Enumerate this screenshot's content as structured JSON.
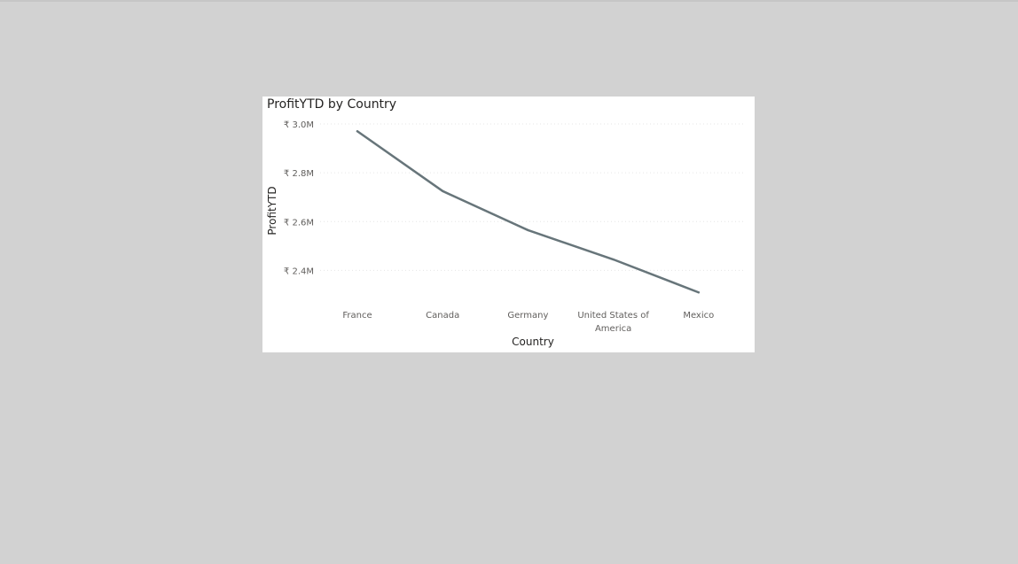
{
  "chart_data": {
    "type": "line",
    "title": "ProfitYTD by Country",
    "xlabel": "Country",
    "ylabel": "ProfitYTD",
    "categories": [
      "France",
      "Canada",
      "Germany",
      "United States of America",
      "Mexico"
    ],
    "category_lines": [
      [
        "France"
      ],
      [
        "Canada"
      ],
      [
        "Germany"
      ],
      [
        "United States of",
        "America"
      ],
      [
        "Mexico"
      ]
    ],
    "series": [
      {
        "values": [
          2970000,
          2725000,
          2565000,
          2445000,
          2310000
        ]
      }
    ],
    "yticks": [
      {
        "value": 2400000,
        "label": "₹ 2.4M"
      },
      {
        "value": 2600000,
        "label": "₹ 2.6M"
      },
      {
        "value": 2800000,
        "label": "₹ 2.8M"
      },
      {
        "value": 3000000,
        "label": "₹ 3.0M"
      }
    ],
    "ylim": [
      2300000,
      3000000
    ],
    "grid": true,
    "colors": {
      "line": "#67757a",
      "background": "#ffffff",
      "canvas": "#d2d2d2"
    }
  }
}
